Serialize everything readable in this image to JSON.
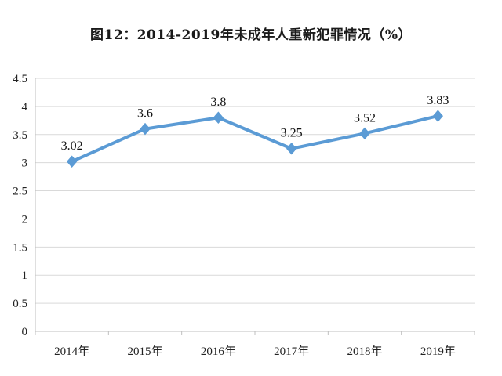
{
  "chart_data": {
    "type": "line",
    "title": "图12：2014-2019年未成年人重新犯罪情况（%）",
    "categories": [
      "2014年",
      "2015年",
      "2016年",
      "2017年",
      "2018年",
      "2019年"
    ],
    "series": [
      {
        "values": [
          3.02,
          3.6,
          3.8,
          3.25,
          3.52,
          3.83
        ],
        "data_labels": [
          "3.02",
          "3.6",
          "3.8",
          "3.25",
          "3.52",
          "3.83"
        ],
        "color": "#5b9bd5",
        "marker": "diamond"
      }
    ],
    "y_ticks": [
      "0",
      "0.5",
      "1",
      "1.5",
      "2",
      "2.5",
      "3",
      "3.5",
      "4",
      "4.5"
    ],
    "ylim": [
      0,
      4.5
    ],
    "grid": true,
    "axis_color": "#bfbfbf",
    "grid_color": "#d9d9d9"
  }
}
